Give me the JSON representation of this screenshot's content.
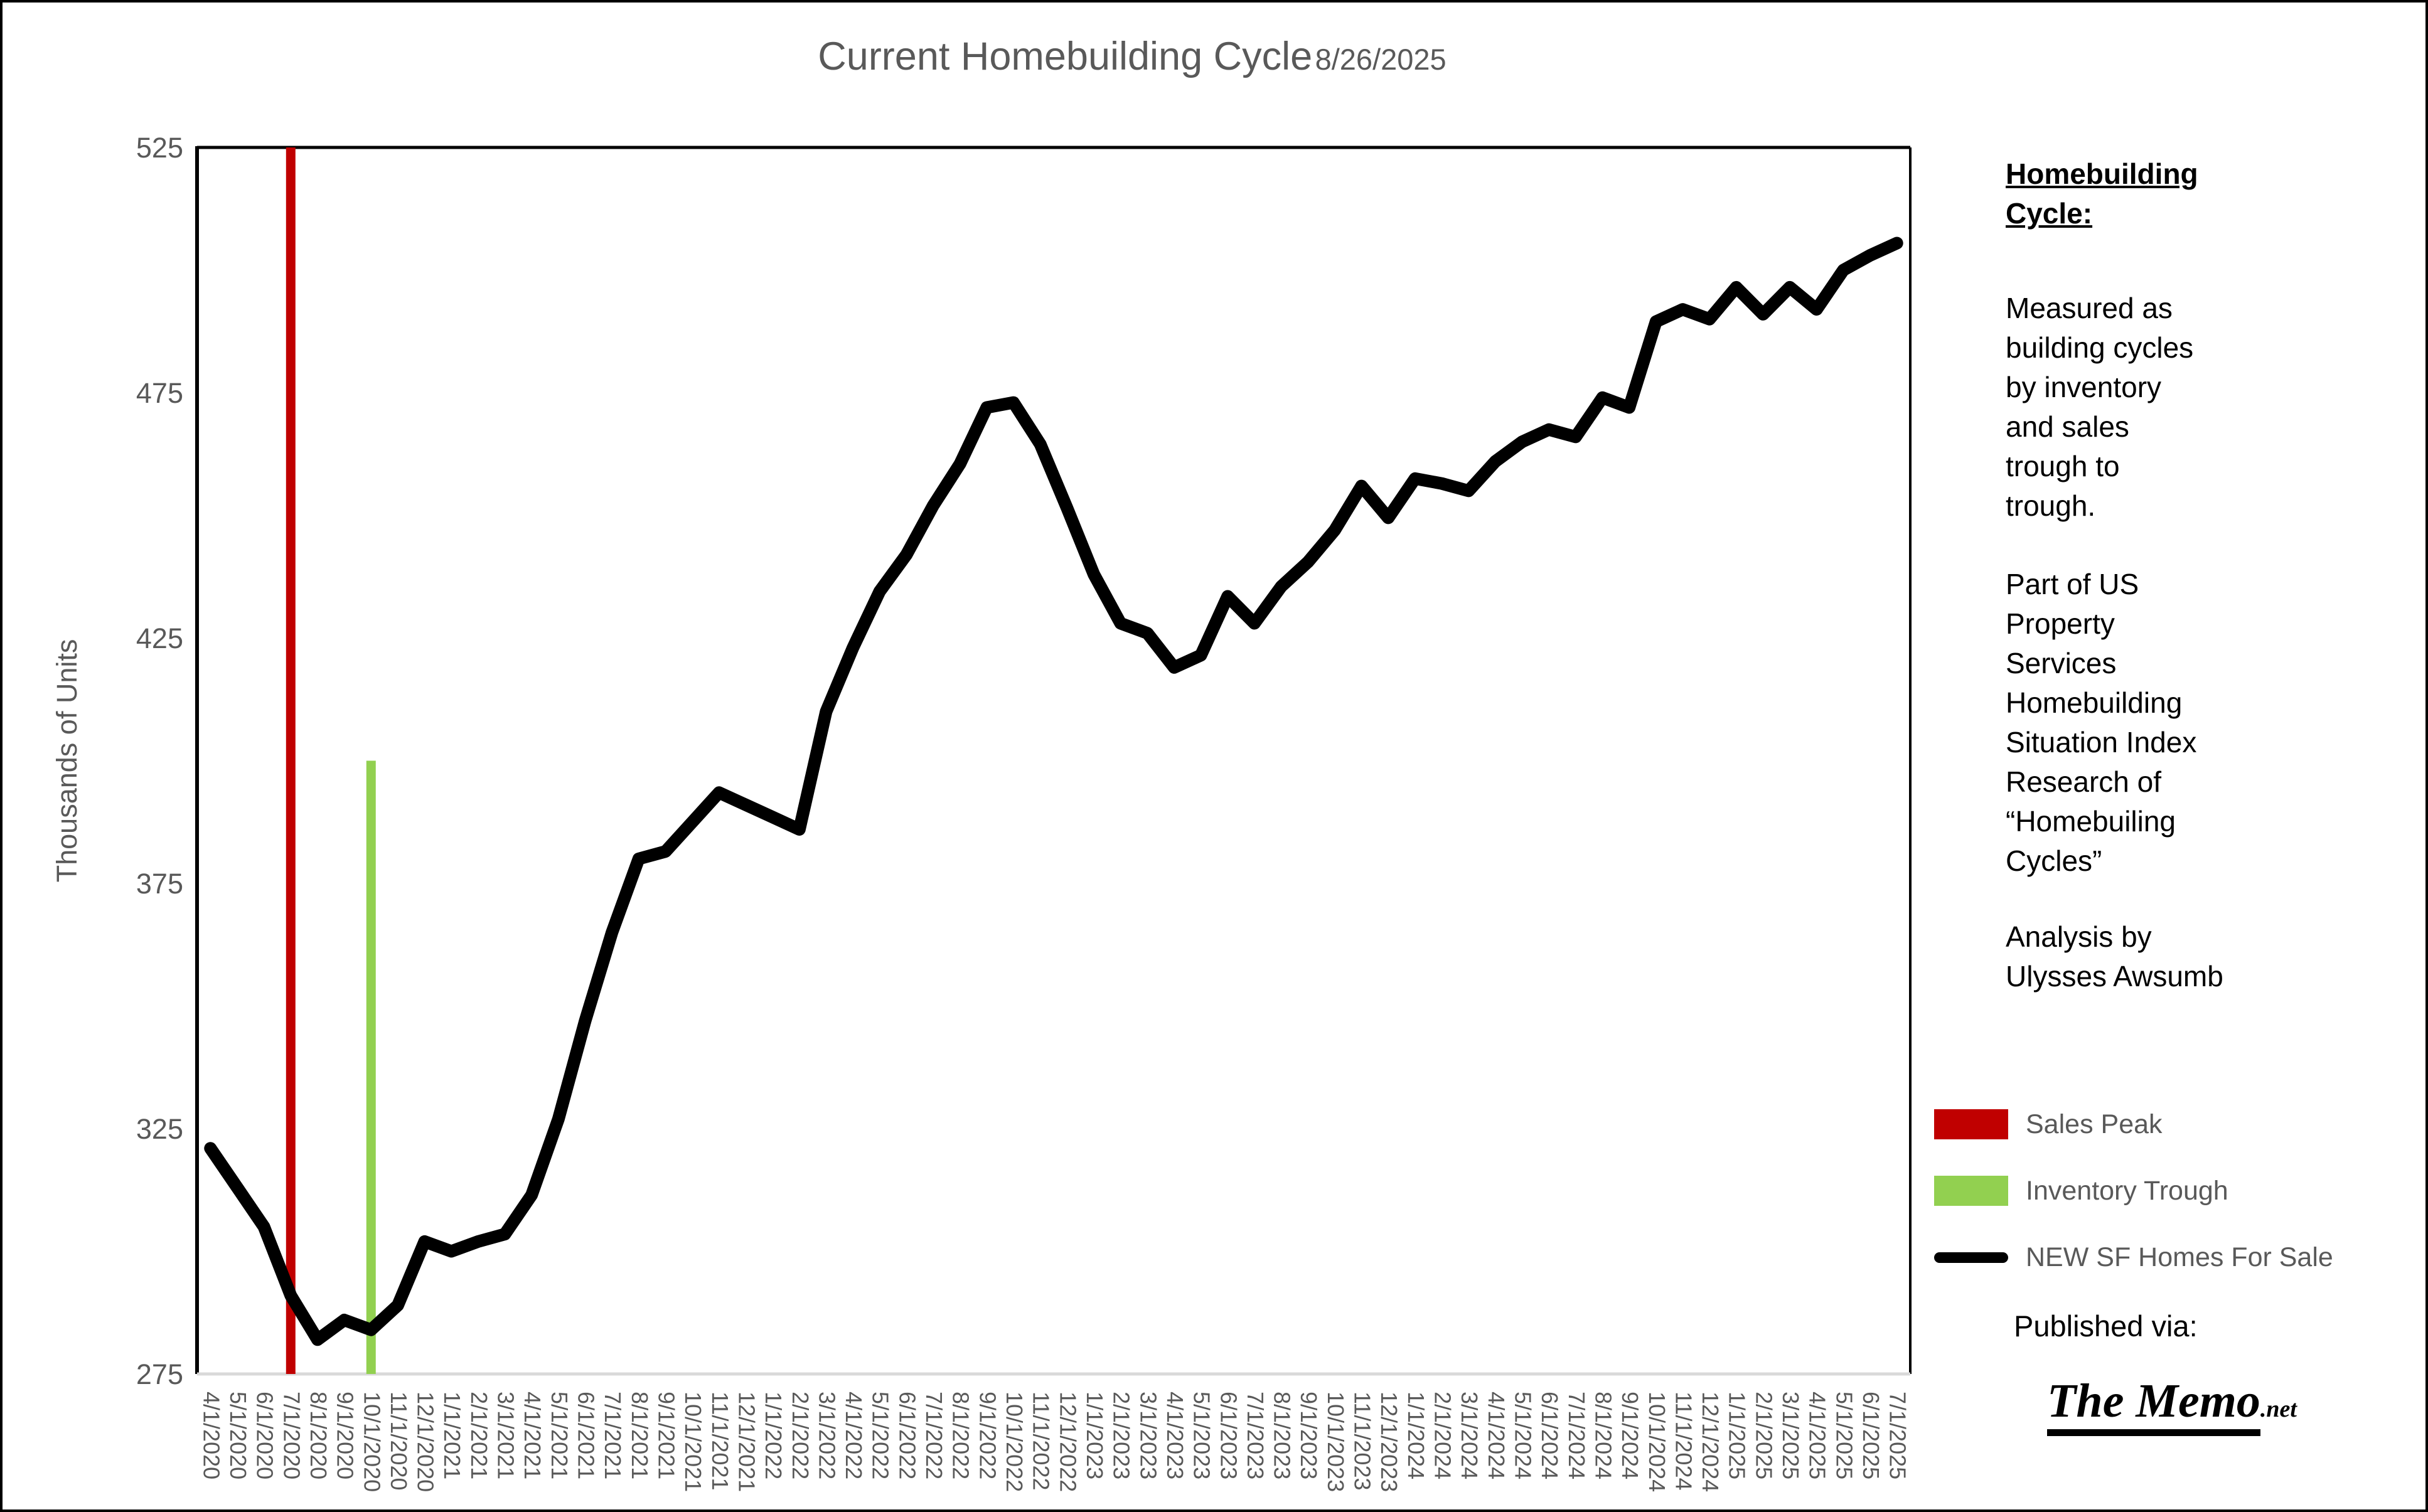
{
  "header": {
    "title": "Current Homebuilding Cycle",
    "date": "8/26/2025"
  },
  "chart_data": {
    "type": "line",
    "title": "Current Homebuilding Cycle 8/26/2025",
    "xlabel": "",
    "ylabel": "Thousands of Units",
    "ylim": [
      275,
      525
    ],
    "yticks": [
      275,
      325,
      375,
      425,
      475,
      525
    ],
    "grid": false,
    "legend_position": "right",
    "axis_color": "#595959",
    "plot_border_color": "#000000",
    "baseline_color": "#d9d9d9",
    "categories": [
      "4/1/2020",
      "5/1/2020",
      "6/1/2020",
      "7/1/2020",
      "8/1/2020",
      "9/1/2020",
      "10/1/2020",
      "11/1/2020",
      "12/1/2020",
      "1/1/2021",
      "2/1/2021",
      "3/1/2021",
      "4/1/2021",
      "5/1/2021",
      "6/1/2021",
      "7/1/2021",
      "8/1/2021",
      "9/1/2021",
      "10/1/2021",
      "11/1/2021",
      "12/1/2021",
      "1/1/2022",
      "2/1/2022",
      "3/1/2022",
      "4/1/2022",
      "5/1/2022",
      "6/1/2022",
      "7/1/2022",
      "8/1/2022",
      "9/1/2022",
      "10/1/2022",
      "11/1/2022",
      "12/1/2022",
      "1/1/2023",
      "2/1/2023",
      "3/1/2023",
      "4/1/2023",
      "5/1/2023",
      "6/1/2023",
      "7/1/2023",
      "8/1/2023",
      "9/1/2023",
      "10/1/2023",
      "11/1/2023",
      "12/1/2023",
      "1/1/2024",
      "2/1/2024",
      "3/1/2024",
      "4/1/2024",
      "5/1/2024",
      "6/1/2024",
      "7/1/2024",
      "8/1/2024",
      "9/1/2024",
      "10/1/2024",
      "11/1/2024",
      "12/1/2024",
      "1/1/2025",
      "2/1/2025",
      "3/1/2025",
      "4/1/2025",
      "5/1/2025",
      "6/1/2025",
      "7/1/2025"
    ],
    "series": [
      {
        "name": "NEW SF Homes For Sale",
        "color": "#000000",
        "values": [
          321,
          313,
          305,
          291,
          282,
          286,
          284,
          289,
          302,
          300,
          302,
          303.5,
          311.5,
          327,
          347,
          365,
          380,
          381.5,
          387.5,
          393.5,
          391,
          388.5,
          386,
          410,
          423,
          434.5,
          442,
          452,
          460.5,
          472,
          473,
          464.5,
          451.5,
          438,
          428,
          426,
          419,
          421.5,
          433.5,
          428,
          435.5,
          440.5,
          447,
          456,
          449.5,
          457.5,
          456.5,
          455,
          461,
          465,
          467.5,
          466,
          474,
          472,
          489.5,
          492,
          490,
          496.5,
          491,
          496.5,
          492,
          500,
          503,
          505.5
        ]
      }
    ],
    "annotations": [
      {
        "label": "Sales Peak",
        "type": "vline",
        "x": "7/1/2020",
        "color": "#c00000",
        "from": 275,
        "to": 525
      },
      {
        "label": "Inventory Trough",
        "type": "vline",
        "x": "10/1/2020",
        "color": "#92d050",
        "from": 275,
        "to": 400
      }
    ]
  },
  "legend": {
    "items": [
      {
        "label": "Sales Peak",
        "color": "#c00000",
        "marker": "rect"
      },
      {
        "label": "Inventory Trough",
        "color": "#92d050",
        "marker": "rect"
      },
      {
        "label": "NEW SF Homes For Sale",
        "color": "#000000",
        "marker": "line"
      }
    ]
  },
  "side_panel": {
    "heading": "Homebuilding\nCycle:",
    "measured": "Measured as\nbuilding cycles\nby inventory\nand sales\ntrough to\ntrough.",
    "research": "Part of US\nProperty\nServices\nHomebuilding\nSituation Index\nResearch of\n“Homebuiling\nCycles”",
    "analysis": "Analysis by\nUlysses Awsumb",
    "published_via": "Published via:",
    "logo_text": "The Memo",
    "logo_suffix": ".net"
  }
}
